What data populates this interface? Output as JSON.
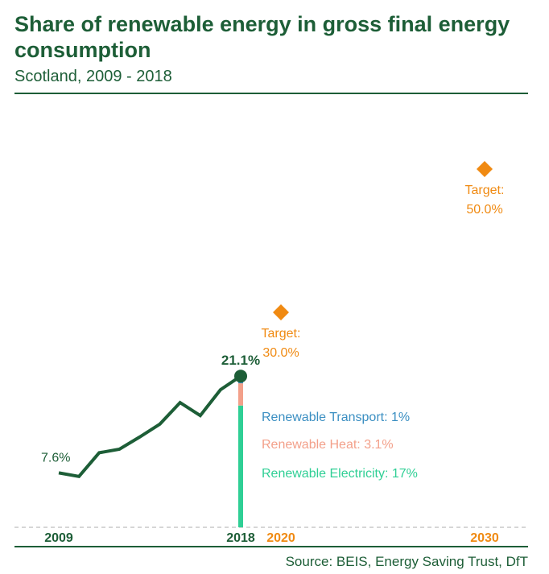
{
  "header": {
    "title": "Share of renewable energy in gross final energy consumption",
    "subtitle": "Scotland, 2009 - 2018"
  },
  "footer": {
    "source": "Source: BEIS, Energy Saving Trust, DfT"
  },
  "colors": {
    "dark_green": "#1d5e37",
    "orange": "#f08a12",
    "teal": "#2fcf95",
    "salmon": "#f3a08a",
    "blue": "#3b8fc2"
  },
  "chart_data": {
    "type": "line",
    "title": "Share of renewable energy in gross final energy consumption",
    "subtitle": "Scotland, 2009 - 2018",
    "x": [
      2009,
      2010,
      2011,
      2012,
      2013,
      2014,
      2015,
      2016,
      2017,
      2018
    ],
    "x_tick_labels": [
      "2009",
      "2018",
      "2020",
      "2030"
    ],
    "y_unit": "%",
    "ylim": [
      0,
      52
    ],
    "series": [
      {
        "values": [
          7.6,
          7.1,
          10.4,
          10.9,
          12.6,
          14.4,
          17.4,
          15.6,
          19.2,
          21.1
        ]
      }
    ],
    "labels": {
      "start": "7.6%",
      "end": "21.1%"
    },
    "breakdown_2018": {
      "year": 2018,
      "components": [
        {
          "name": "Renewable Electricity",
          "label": "Renewable Electricity: 17%",
          "value": 17,
          "color": "#2fcf95"
        },
        {
          "name": "Renewable Heat",
          "label": "Renewable Heat: 3.1%",
          "value": 3.1,
          "color": "#f3a08a"
        },
        {
          "name": "Renewable Transport",
          "label": "Renewable Transport: 1%",
          "value": 1,
          "color": "#3b8fc2"
        }
      ]
    },
    "targets": [
      {
        "year": 2020,
        "value": 30.0,
        "label_line1": "Target:",
        "label_line2": "30.0%"
      },
      {
        "year": 2030,
        "value": 50.0,
        "label_line1": "Target:",
        "label_line2": "50.0%"
      }
    ]
  }
}
